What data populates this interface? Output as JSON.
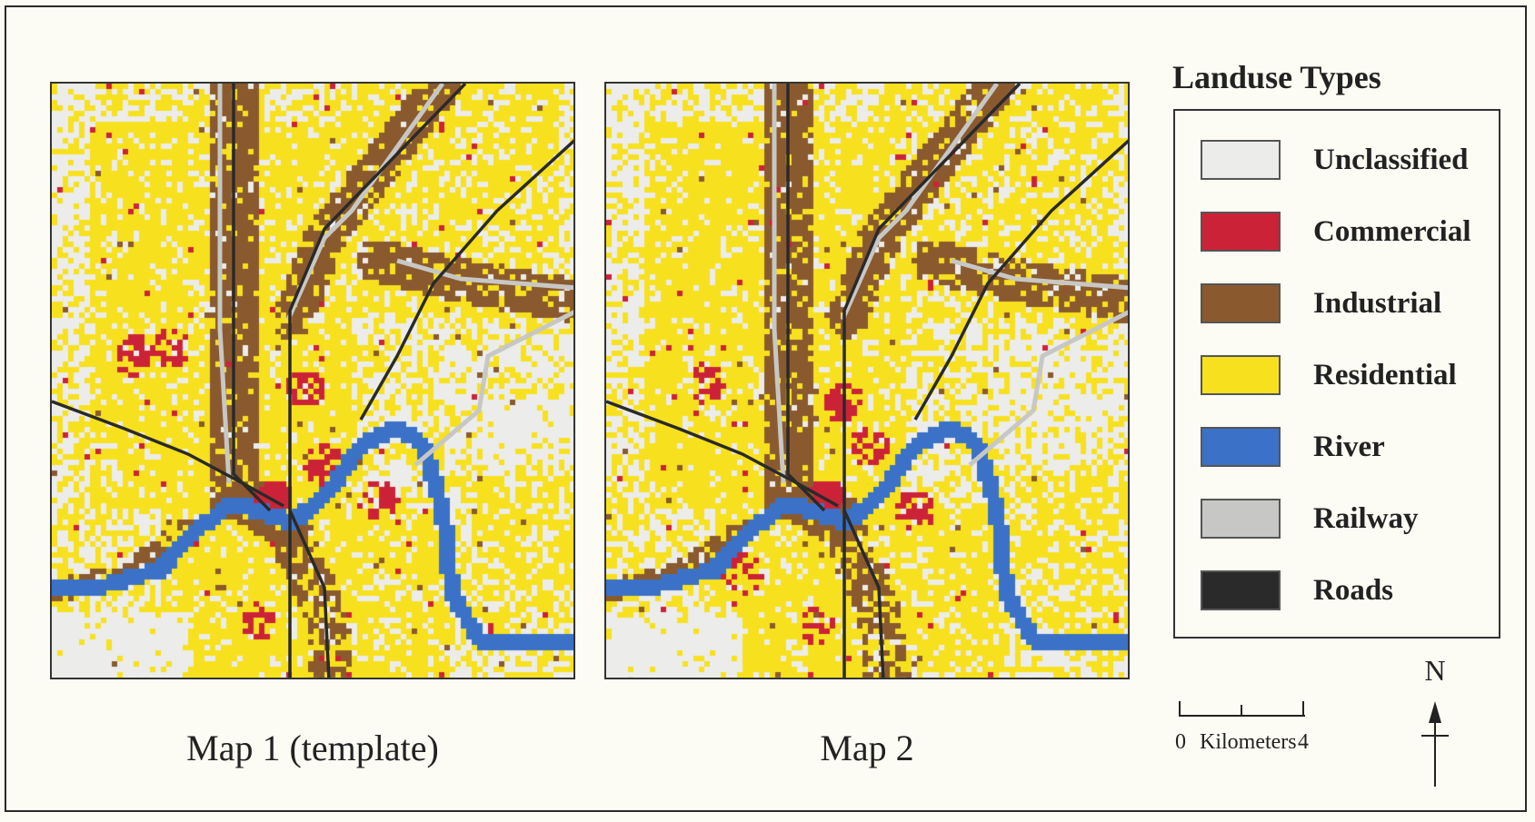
{
  "legend": {
    "title": "Landuse Types",
    "items": [
      {
        "label": "Unclassified",
        "color": "#ececea"
      },
      {
        "label": "Commercial",
        "color": "#cc2238"
      },
      {
        "label": "Industrial",
        "color": "#8a5a2e"
      },
      {
        "label": "Residential",
        "color": "#f7e11f"
      },
      {
        "label": "River",
        "color": "#3b72c8"
      },
      {
        "label": "Railway",
        "color": "#c7c7c5"
      },
      {
        "label": "Roads",
        "color": "#2a2a2a"
      }
    ]
  },
  "maps": [
    {
      "caption": "Map 1 (template)"
    },
    {
      "caption": "Map 2"
    }
  ],
  "scale_bar": {
    "zero": "0",
    "unit": "Kilometers",
    "max": "4"
  },
  "north_arrow": {
    "label": "N"
  }
}
